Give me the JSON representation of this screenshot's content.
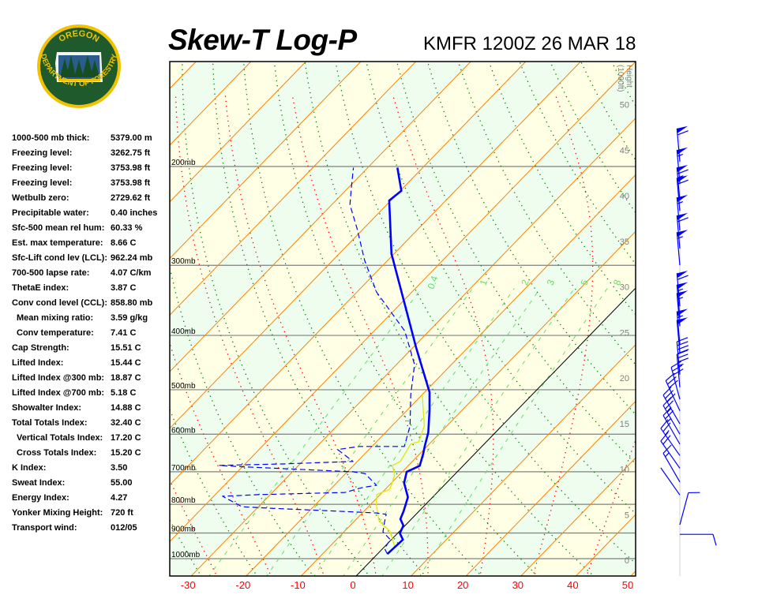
{
  "header": {
    "title": "Skew-T Log-P",
    "station_time": "KMFR 1200Z 26 MAR 18"
  },
  "logo": {
    "text_top": "OREGON",
    "text_bottom": "DEPARTMENT OF FORESTRY",
    "colors": {
      "ring": "#f2c200",
      "field": "#1e5a2c"
    }
  },
  "indices": [
    {
      "label": "1000-500 mb thick:",
      "value": "5379.00 m",
      "indent": false
    },
    {
      "label": "Freezing level:",
      "value": "3262.75 ft",
      "indent": false
    },
    {
      "label": "Freezing level:",
      "value": "3753.98 ft",
      "indent": false
    },
    {
      "label": "Freezing level:",
      "value": "3753.98 ft",
      "indent": false
    },
    {
      "label": "Wetbulb zero:",
      "value": "2729.62 ft",
      "indent": false
    },
    {
      "label": "Precipitable water:",
      "value": "0.40 inches",
      "indent": false
    },
    {
      "label": "Sfc-500 mean rel hum:",
      "value": "60.33 %",
      "indent": false
    },
    {
      "label": "Est. max temperature:",
      "value": "8.66 C",
      "indent": false
    },
    {
      "label": "Sfc-Lift cond lev (LCL):",
      "value": "962.24 mb",
      "indent": false
    },
    {
      "label": "700-500 lapse rate:",
      "value": "4.07 C/km",
      "indent": false
    },
    {
      "label": "ThetaE index:",
      "value": "3.87 C",
      "indent": false
    },
    {
      "label": "Conv cond level (CCL):",
      "value": "858.80 mb",
      "indent": false
    },
    {
      "label": "Mean mixing ratio:",
      "value": "3.59 g/kg",
      "indent": true
    },
    {
      "label": "Conv temperature:",
      "value": "7.41 C",
      "indent": true
    },
    {
      "label": "Cap Strength:",
      "value": "15.51 C",
      "indent": false
    },
    {
      "label": "Lifted Index:",
      "value": "15.44 C",
      "indent": false
    },
    {
      "label": "Lifted Index @300 mb:",
      "value": "18.87 C",
      "indent": false
    },
    {
      "label": "Lifted Index @700 mb:",
      "value": "5.18 C",
      "indent": false
    },
    {
      "label": "Showalter Index:",
      "value": "14.88 C",
      "indent": false
    },
    {
      "label": "Total Totals Index:",
      "value": "32.40 C",
      "indent": false
    },
    {
      "label": "Vertical Totals Index:",
      "value": "17.20 C",
      "indent": true
    },
    {
      "label": "Cross Totals Index:",
      "value": "15.20 C",
      "indent": true
    },
    {
      "label": "K Index:",
      "value": "3.50",
      "indent": false
    },
    {
      "label": "Sweat Index:",
      "value": "55.00",
      "indent": false
    },
    {
      "label": "Energy Index:",
      "value": "4.27",
      "indent": false
    },
    {
      "label": "Yonker Mixing Height:",
      "value": "720 ft",
      "indent": false
    },
    {
      "label": "Transport wind:",
      "value": "012/05",
      "indent": false
    }
  ],
  "chart_data": {
    "type": "line",
    "title": "Skew-T Log-P",
    "xlabel": "",
    "ylabel": "",
    "xlim": [
      -30,
      50
    ],
    "ylim_mb": [
      1074,
      130
    ],
    "grid": true,
    "temperature_ticks": [
      -30,
      -20,
      -10,
      0,
      10,
      20,
      30,
      40,
      50
    ],
    "temperature_tick_labels": [
      "-30",
      "-20",
      "-10",
      "0",
      "10",
      "20",
      "30",
      "40",
      "50"
    ],
    "pressure_levels": [
      200,
      300,
      400,
      500,
      600,
      700,
      800,
      900,
      1000
    ],
    "pressure_labels": [
      "200mb",
      "300mb",
      "400mb",
      "500mb",
      "600mb",
      "700mb",
      "800mb",
      "900mb",
      "1000mb"
    ],
    "height_axis_label": "Height (1000ft)",
    "height_ticks": [
      0,
      5,
      10,
      15,
      20,
      25,
      30,
      35,
      40,
      45,
      50
    ],
    "height_tick_labels": [
      "0",
      "5",
      "10",
      "15",
      "20",
      "25",
      "30",
      "35",
      "40",
      "45",
      "50"
    ],
    "mixing_ratios": [
      0.4,
      1,
      2,
      3,
      5,
      8
    ],
    "mixing_ratio_labels": [
      "0.4",
      "1",
      "2",
      "3",
      "5",
      "8"
    ],
    "colors": {
      "temperature": "#0000ff",
      "dewpoint": "#0000ff",
      "wetbulb": "#e6e600",
      "isotherm": "#ff8000",
      "zero_isotherm": "#000000",
      "dry_adiabat": "#008000",
      "moist_adiabat": "#ff0000",
      "mixing_ratio": "#66dd66",
      "band_a": "#eefdee",
      "band_b": "#ffffe6",
      "wind": "#0000ff"
    },
    "temperature": [
      [
        981,
        1.8
      ],
      [
        944,
        2.0
      ],
      [
        925,
        2.1
      ],
      [
        901,
        0.4
      ],
      [
        873,
        -0.3
      ],
      [
        850,
        -2.0
      ],
      [
        823,
        -2.8
      ],
      [
        777,
        -4.5
      ],
      [
        733,
        -7.7
      ],
      [
        700,
        -9.2
      ],
      [
        683,
        -7.9
      ],
      [
        650,
        -9.4
      ],
      [
        629,
        -10.5
      ],
      [
        596,
        -12.2
      ],
      [
        544,
        -15.9
      ],
      [
        505,
        -19.1
      ],
      [
        420,
        -29.5
      ],
      [
        351,
        -39.3
      ],
      [
        286,
        -50.5
      ],
      [
        230,
        -60.3
      ],
      [
        221,
        -59.8
      ],
      [
        201,
        -64.6
      ]
    ],
    "dewpoint": [
      [
        981,
        1.8
      ],
      [
        959,
        0.3
      ],
      [
        925,
        -0.2
      ],
      [
        896,
        -2.9
      ],
      [
        862,
        -4.3
      ],
      [
        834,
        -5.4
      ],
      [
        829,
        -7.4
      ],
      [
        823,
        -14.9
      ],
      [
        813,
        -27.6
      ],
      [
        808,
        -33.0
      ],
      [
        774,
        -38.4
      ],
      [
        769,
        -32.2
      ],
      [
        762,
        -16.8
      ],
      [
        747,
        -14.5
      ],
      [
        740,
        -12.3
      ],
      [
        705,
        -16.5
      ],
      [
        700,
        -19.0
      ],
      [
        686,
        -39.9
      ],
      [
        682,
        -44.5
      ],
      [
        678,
        -33.3
      ],
      [
        671,
        -20.8
      ],
      [
        639,
        -25.7
      ],
      [
        631,
        -22.3
      ],
      [
        631,
        -14.1
      ],
      [
        580,
        -16.7
      ],
      [
        510,
        -22.1
      ],
      [
        451,
        -26.7
      ],
      [
        393,
        -34.4
      ],
      [
        335,
        -46.4
      ],
      [
        294,
        -54.2
      ],
      [
        258,
        -61.2
      ],
      [
        234,
        -66.7
      ],
      [
        219,
        -69.3
      ],
      [
        201,
        -72.6
      ]
    ],
    "wetbulb": [
      [
        953,
        1.9
      ],
      [
        893,
        -1.8
      ],
      [
        856,
        -5.6
      ],
      [
        803,
        -8.8
      ],
      [
        769,
        -10.6
      ],
      [
        752,
        -9.2
      ],
      [
        712,
        -10.7
      ],
      [
        682,
        -12.9
      ],
      [
        671,
        -12.2
      ],
      [
        646,
        -12.8
      ],
      [
        625,
        -13.4
      ],
      [
        619,
        -12.3
      ],
      [
        580,
        -14.1
      ],
      [
        510,
        -20.0
      ]
    ],
    "wind_barbs": [
      {
        "p": 196,
        "dir": 355,
        "spd": 60
      },
      {
        "p": 214,
        "dir": 355,
        "spd": 55
      },
      {
        "p": 230,
        "dir": 355,
        "spd": 65
      },
      {
        "p": 240,
        "dir": 355,
        "spd": 60
      },
      {
        "p": 260,
        "dir": 355,
        "spd": 55
      },
      {
        "p": 280,
        "dir": 355,
        "spd": 60
      },
      {
        "p": 300,
        "dir": 355,
        "spd": 55
      },
      {
        "p": 355,
        "dir": 355,
        "spd": 60
      },
      {
        "p": 372,
        "dir": 355,
        "spd": 55
      },
      {
        "p": 385,
        "dir": 355,
        "spd": 55
      },
      {
        "p": 415,
        "dir": 355,
        "spd": 55
      },
      {
        "p": 430,
        "dir": 355,
        "spd": 50
      },
      {
        "p": 470,
        "dir": 355,
        "spd": 40
      },
      {
        "p": 495,
        "dir": 355,
        "spd": 35
      },
      {
        "p": 520,
        "dir": 345,
        "spd": 30
      },
      {
        "p": 545,
        "dir": 335,
        "spd": 30
      },
      {
        "p": 575,
        "dir": 330,
        "spd": 30
      },
      {
        "p": 600,
        "dir": 330,
        "spd": 25
      },
      {
        "p": 625,
        "dir": 330,
        "spd": 25
      },
      {
        "p": 655,
        "dir": 325,
        "spd": 25
      },
      {
        "p": 690,
        "dir": 325,
        "spd": 20
      },
      {
        "p": 730,
        "dir": 330,
        "spd": 15
      },
      {
        "p": 770,
        "dir": 325,
        "spd": 0
      },
      {
        "p": 870,
        "dir": 15,
        "spd": 10
      },
      {
        "p": 905,
        "dir": 90,
        "spd": 10
      }
    ]
  }
}
